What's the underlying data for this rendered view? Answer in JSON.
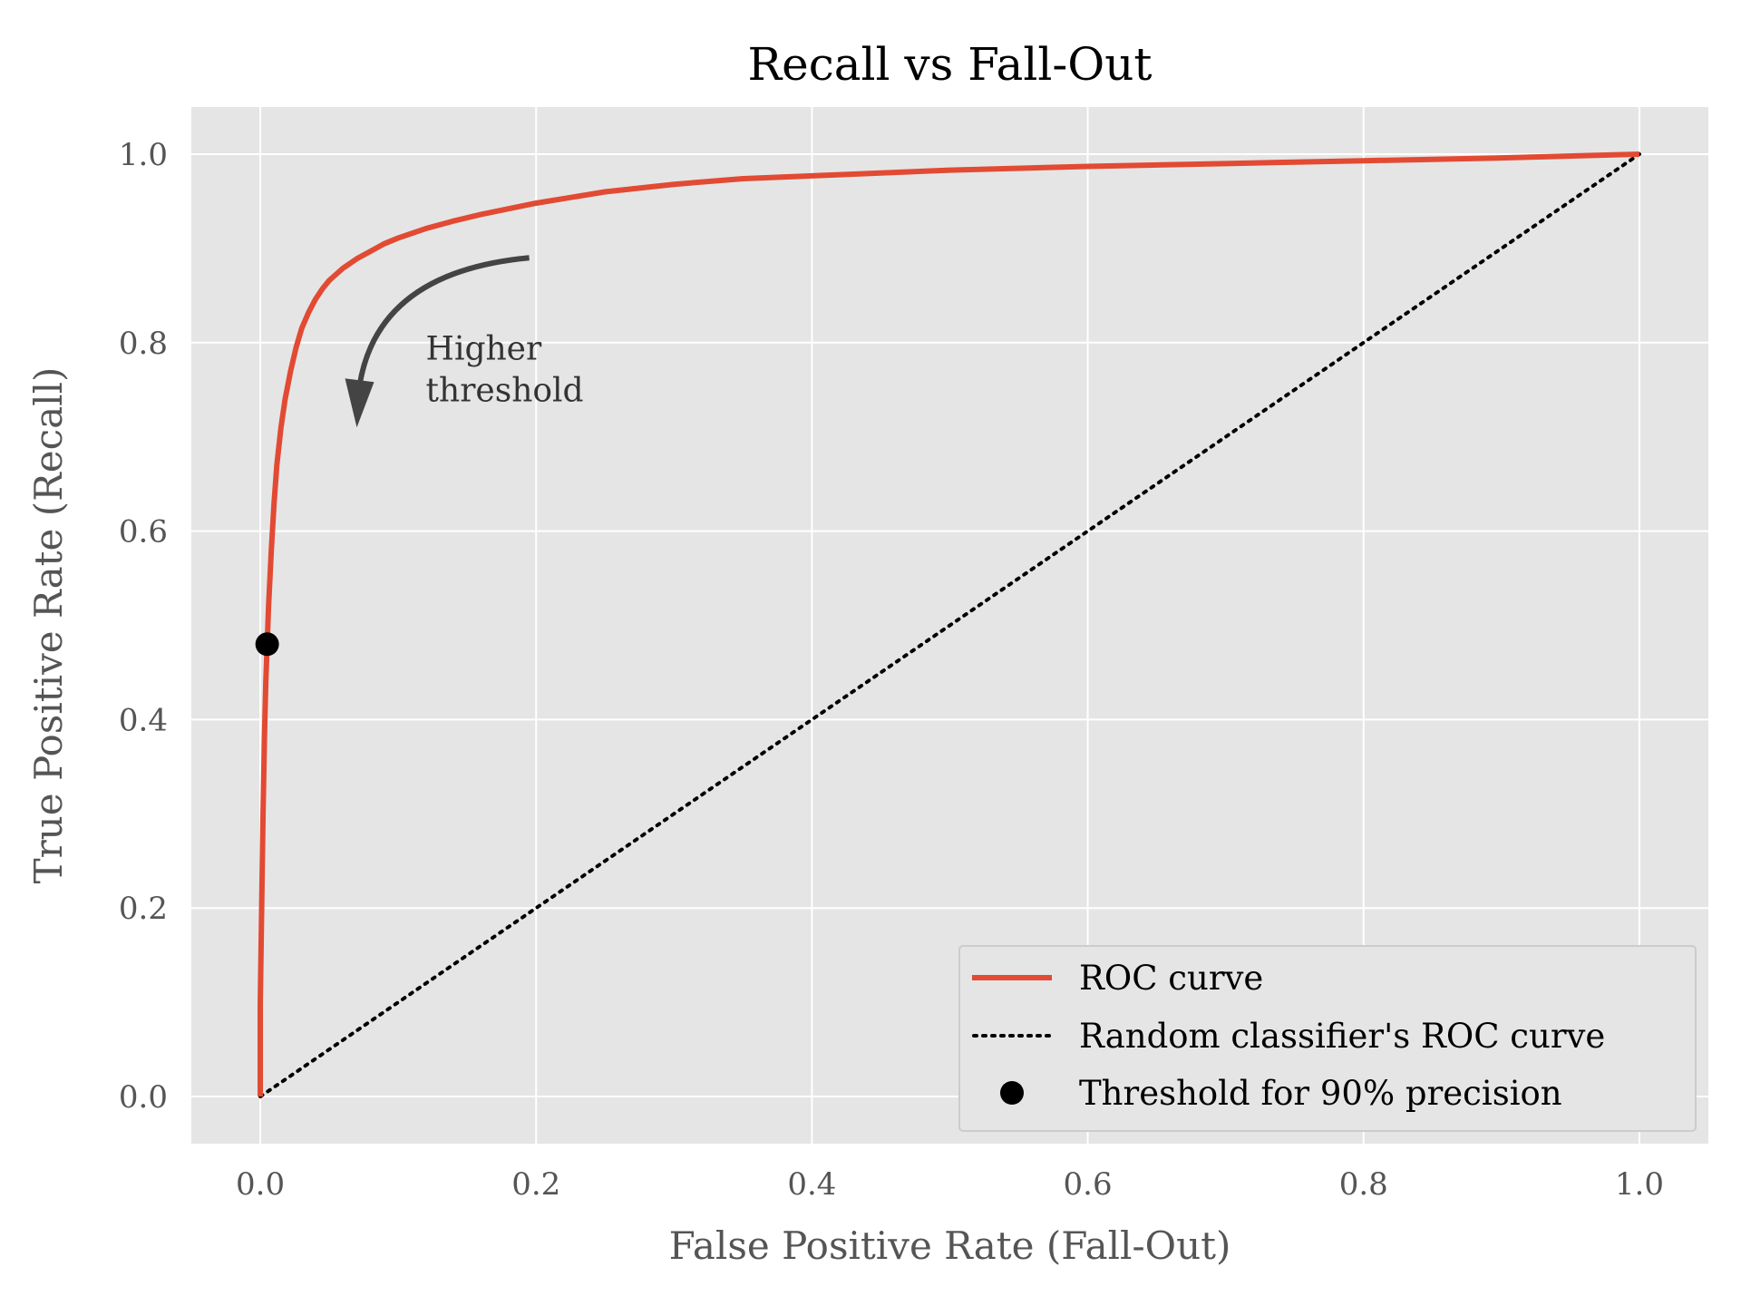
{
  "chart_data": {
    "type": "line",
    "title": "Recall vs Fall-Out",
    "xlabel": "False Positive Rate (Fall-Out)",
    "ylabel": "True Positive Rate (Recall)",
    "xlim": [
      -0.05,
      1.05
    ],
    "ylim": [
      -0.05,
      1.05
    ],
    "xticks": [
      0.0,
      0.2,
      0.4,
      0.6,
      0.8,
      1.0
    ],
    "xtick_labels": [
      "0.0",
      "0.2",
      "0.4",
      "0.6",
      "0.8",
      "1.0"
    ],
    "yticks": [
      0.0,
      0.2,
      0.4,
      0.6,
      0.8,
      1.0
    ],
    "ytick_labels": [
      "0.0",
      "0.2",
      "0.4",
      "0.6",
      "0.8",
      "1.0"
    ],
    "grid": true,
    "background": "#e5e5e5",
    "legend_position": "bottom-right",
    "series": [
      {
        "name": "ROC curve",
        "style": "solid",
        "color": "#e24a33",
        "x": [
          0.0,
          0.0,
          0.001,
          0.002,
          0.003,
          0.004,
          0.005,
          0.006,
          0.008,
          0.01,
          0.012,
          0.015,
          0.018,
          0.022,
          0.026,
          0.03,
          0.035,
          0.04,
          0.045,
          0.05,
          0.06,
          0.07,
          0.08,
          0.09,
          0.1,
          0.12,
          0.14,
          0.16,
          0.18,
          0.2,
          0.25,
          0.3,
          0.35,
          0.4,
          0.5,
          0.6,
          0.7,
          0.8,
          0.9,
          1.0
        ],
        "y": [
          0.0,
          0.1,
          0.2,
          0.3,
          0.38,
          0.44,
          0.48,
          0.52,
          0.58,
          0.63,
          0.67,
          0.71,
          0.74,
          0.77,
          0.795,
          0.815,
          0.832,
          0.846,
          0.857,
          0.866,
          0.879,
          0.889,
          0.897,
          0.905,
          0.911,
          0.921,
          0.929,
          0.936,
          0.942,
          0.948,
          0.96,
          0.968,
          0.974,
          0.977,
          0.983,
          0.987,
          0.99,
          0.993,
          0.996,
          1.0
        ]
      },
      {
        "name": "Random classifier's ROC curve",
        "style": "dotted",
        "color": "#000000",
        "x": [
          0.0,
          1.0
        ],
        "y": [
          0.0,
          1.0
        ]
      },
      {
        "name": "Threshold for 90% precision",
        "style": "marker",
        "color": "#000000",
        "x": [
          0.005
        ],
        "y": [
          0.48
        ]
      }
    ],
    "annotations": [
      {
        "text_lines": [
          "Higher",
          "threshold"
        ],
        "text_at": [
          0.12,
          0.78
        ],
        "arrow_from": [
          0.195,
          0.89
        ],
        "arrow_to": [
          0.07,
          0.71
        ]
      }
    ]
  }
}
